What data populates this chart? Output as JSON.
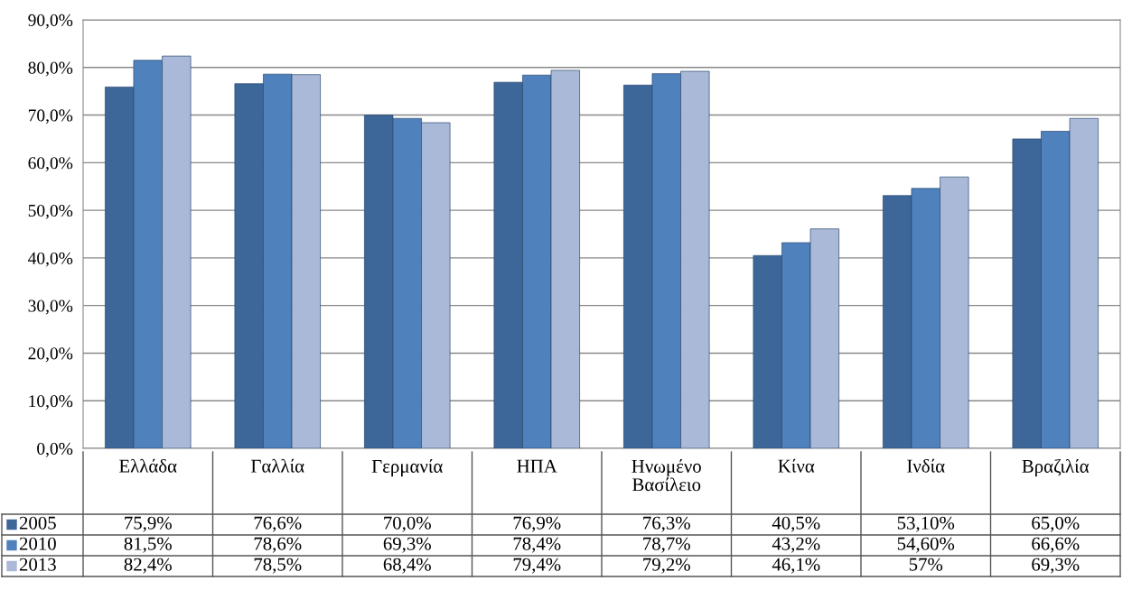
{
  "chart_data": {
    "type": "bar",
    "categories": [
      "Ελλάδα",
      "Γαλλία",
      "Γερμανία",
      "ΗΠΑ",
      "Ηνωμένο Βασίλειο",
      "Κίνα",
      "Ινδία",
      "Βραζιλία"
    ],
    "series": [
      {
        "name": "2005",
        "color": "#3d6699",
        "values": [
          75.9,
          76.6,
          70.0,
          76.9,
          76.3,
          40.5,
          53.1,
          65.0
        ],
        "value_labels": [
          "75,9%",
          "76,6%",
          "70,0%",
          "76,9%",
          "76,3%",
          "40,5%",
          "53,10%",
          "65,0%"
        ]
      },
      {
        "name": "2010",
        "color": "#4f81bd",
        "values": [
          81.5,
          78.6,
          69.3,
          78.4,
          78.7,
          43.2,
          54.6,
          66.6
        ],
        "value_labels": [
          "81,5%",
          "78,6%",
          "69,3%",
          "78,4%",
          "78,7%",
          "43,2%",
          "54,60%",
          "66,6%"
        ]
      },
      {
        "name": "2013",
        "color": "#aab9d8",
        "values": [
          82.4,
          78.5,
          68.4,
          79.4,
          79.2,
          46.1,
          57,
          69.3
        ],
        "value_labels": [
          "82,4%",
          "78,5%",
          "68,4%",
          "79,4%",
          "79,2%",
          "46,1%",
          "57%",
          "69,3%"
        ]
      }
    ],
    "ylim": [
      0,
      90
    ],
    "yticks": [
      {
        "value": 0,
        "label": "0,0%"
      },
      {
        "value": 10,
        "label": "10,0%"
      },
      {
        "value": 20,
        "label": "20,0%"
      },
      {
        "value": 30,
        "label": "30,0%"
      },
      {
        "value": 40,
        "label": "40,0%"
      },
      {
        "value": 50,
        "label": "50,0%"
      },
      {
        "value": 60,
        "label": "60,0%"
      },
      {
        "value": 70,
        "label": "70,0%"
      },
      {
        "value": 80,
        "label": "80,0%"
      },
      {
        "value": 90,
        "label": "90,0%"
      }
    ],
    "grid": "y",
    "legend": "bottom left"
  }
}
